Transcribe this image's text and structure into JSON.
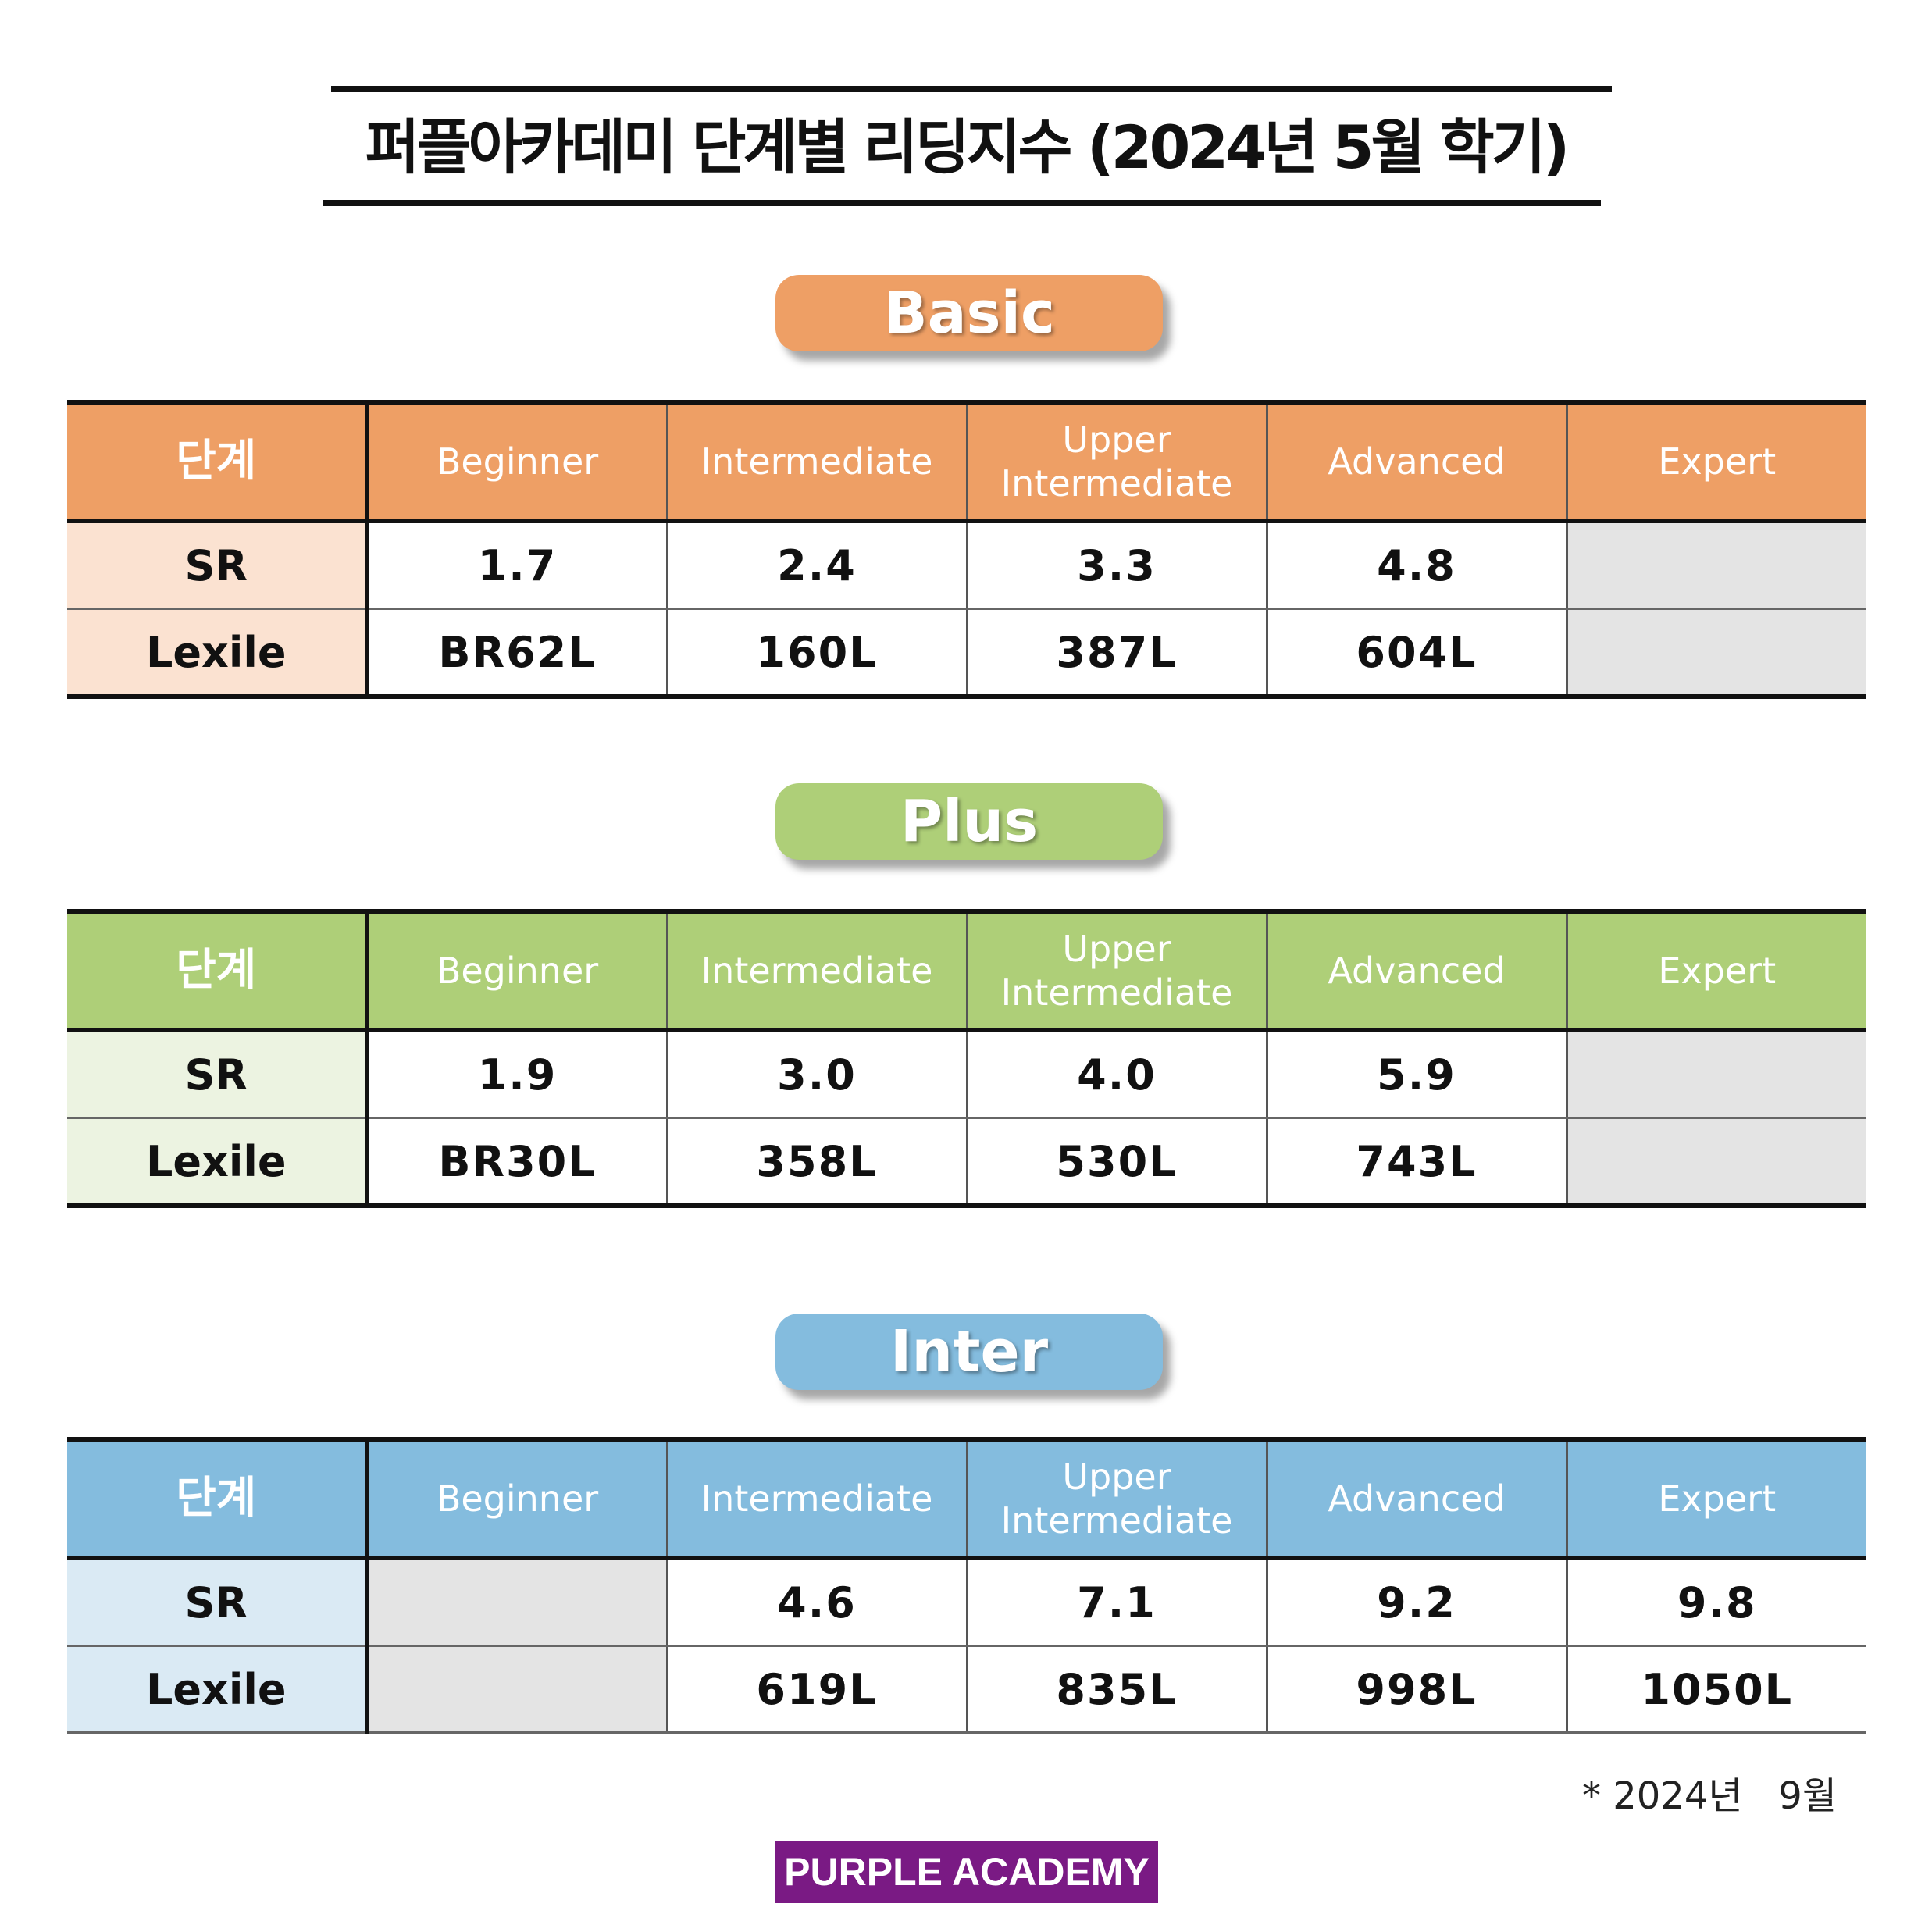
{
  "title": "퍼플아카데미 단계별 리딩지수 (2024년 5월 학기)",
  "levels": [
    "Beginner",
    "Intermediate",
    "Upper Intermediate",
    "Advanced",
    "Expert"
  ],
  "stage_label": "단계",
  "sections": [
    {
      "name": "Basic",
      "color": "#EE9F65",
      "rows": [
        {
          "label": "SR",
          "values": [
            "1.7",
            "2.4",
            "3.3",
            "4.8",
            ""
          ]
        },
        {
          "label": "Lexile",
          "values": [
            "BR62L",
            "160L",
            "387L",
            "604L",
            ""
          ]
        }
      ]
    },
    {
      "name": "Plus",
      "color": "#AECF78",
      "rows": [
        {
          "label": "SR",
          "values": [
            "1.9",
            "3.0",
            "4.0",
            "5.9",
            ""
          ]
        },
        {
          "label": "Lexile",
          "values": [
            "BR30L",
            "358L",
            "530L",
            "743L",
            ""
          ]
        }
      ]
    },
    {
      "name": "Inter",
      "color": "#84BCDE",
      "rows": [
        {
          "label": "SR",
          "values": [
            "",
            "4.6",
            "7.1",
            "9.2",
            "9.8"
          ]
        },
        {
          "label": "Lexile",
          "values": [
            "",
            "619L",
            "835L",
            "998L",
            "1050L"
          ]
        }
      ]
    }
  ],
  "note": "* 2024년   9월",
  "brand": "PURPLE ACADEMY",
  "brand_color": "#7A1A84"
}
